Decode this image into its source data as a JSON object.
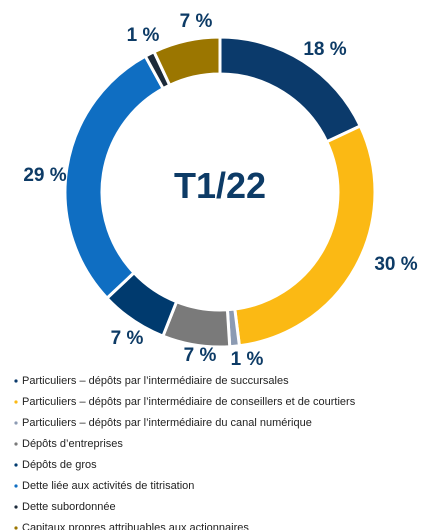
{
  "chart_data": {
    "type": "pie",
    "donut": true,
    "title": "T1/22",
    "categories": [
      "Particuliers – dépôts par l’intermédiaire de succursales",
      "Particuliers – dépôts par l’intermédiaire de conseillers et de courtiers",
      "Particuliers – dépôts par l’intermédiaire du canal numérique",
      "Dépôts d’entreprises",
      "Dépôts de gros",
      "Dette liée aux activités de titrisation",
      "Dette subordonnée",
      "Capitaux propres attribuables aux actionnaires"
    ],
    "values": [
      18,
      30,
      1,
      7,
      7,
      29,
      1,
      7
    ],
    "value_labels": [
      "18 %",
      "30 %",
      "1 %",
      "7 %",
      "7 %",
      "29 %",
      "1 %",
      "7 %"
    ],
    "colors": [
      "#0b3a6b",
      "#fbb914",
      "#8c9bb3",
      "#7a7a7a",
      "#003a6e",
      "#0f6ec2",
      "#1c2a3a",
      "#9b7600"
    ]
  }
}
